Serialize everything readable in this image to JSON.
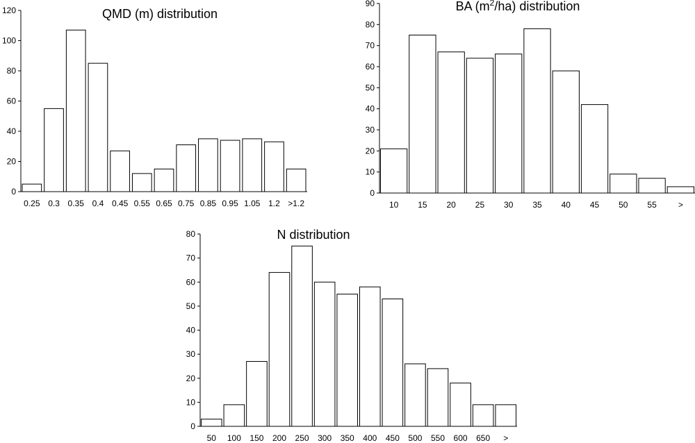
{
  "chart_data": [
    {
      "type": "bar",
      "title": "QMD (m) distribution",
      "xlabel": "",
      "ylabel": "",
      "ylim": [
        0,
        120
      ],
      "ytick_step": 20,
      "categories": [
        "0.25",
        "0.3",
        "0.35",
        "0.4",
        "0.45",
        "0.55",
        "0.65",
        "0.75",
        "0.85",
        "0.95",
        "1.05",
        "1.2",
        ">1.2"
      ],
      "values": [
        5,
        55,
        107,
        85,
        27,
        12,
        15,
        31,
        35,
        34,
        35,
        33,
        15
      ]
    },
    {
      "type": "bar",
      "title": "BA (m²/ha) distribution",
      "xlabel": "",
      "ylabel": "",
      "ylim": [
        0,
        90
      ],
      "ytick_step": 10,
      "categories": [
        "10",
        "15",
        "20",
        "25",
        "30",
        "35",
        "40",
        "45",
        "50",
        "55",
        ">"
      ],
      "values": [
        21,
        75,
        67,
        64,
        66,
        78,
        58,
        42,
        9,
        7,
        3
      ]
    },
    {
      "type": "bar",
      "title": "N distribution",
      "xlabel": "",
      "ylabel": "",
      "ylim": [
        0,
        80
      ],
      "ytick_step": 10,
      "categories": [
        "50",
        "100",
        "150",
        "200",
        "250",
        "300",
        "350",
        "400",
        "450",
        "500",
        "550",
        "600",
        "650",
        ">"
      ],
      "values": [
        3,
        9,
        27,
        64,
        75,
        60,
        55,
        58,
        53,
        26,
        24,
        18,
        9,
        9
      ]
    }
  ]
}
